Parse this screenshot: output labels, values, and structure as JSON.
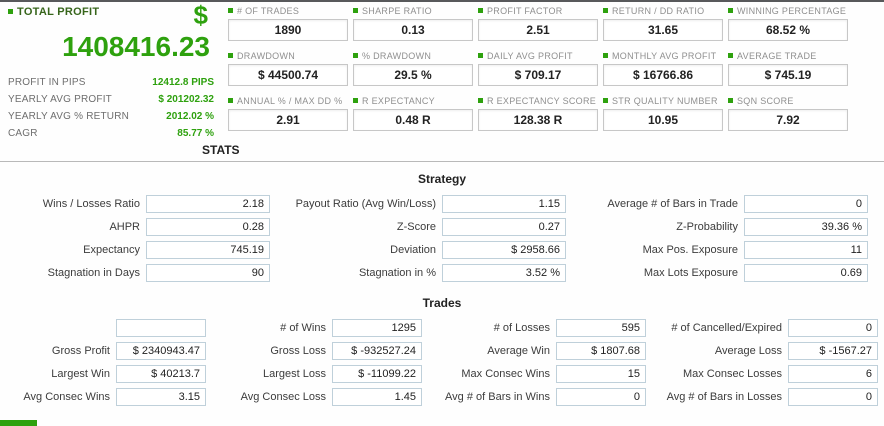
{
  "colors": {
    "green": "#2ea10e",
    "dark_green": "#37651b"
  },
  "summary": {
    "title": "TOTAL PROFIT",
    "currency": "$",
    "total_profit": "1408416.23",
    "stats_label": "STATS",
    "rows": [
      {
        "label": "PROFIT IN PIPS",
        "value": "12412.8 PIPS"
      },
      {
        "label": "YEARLY AVG PROFIT",
        "value": "$ 201202.32"
      },
      {
        "label": "YEARLY AVG % RETURN",
        "value": "2012.02 %"
      },
      {
        "label": "CAGR",
        "value": "85.77 %"
      }
    ]
  },
  "stat_boxes": [
    {
      "label": "# OF TRADES",
      "value": "1890"
    },
    {
      "label": "SHARPE RATIO",
      "value": "0.13"
    },
    {
      "label": "PROFIT FACTOR",
      "value": "2.51"
    },
    {
      "label": "RETURN / DD RATIO",
      "value": "31.65"
    },
    {
      "label": "WINNING PERCENTAGE",
      "value": "68.52 %"
    },
    {
      "label": "DRAWDOWN",
      "value": "$ 44500.74"
    },
    {
      "label": "% DRAWDOWN",
      "value": "29.5 %"
    },
    {
      "label": "DAILY AVG PROFIT",
      "value": "$ 709.17"
    },
    {
      "label": "MONTHLY AVG PROFIT",
      "value": "$ 16766.86"
    },
    {
      "label": "AVERAGE TRADE",
      "value": "$ 745.19"
    },
    {
      "label": "ANNUAL % / MAX DD %",
      "value": "2.91"
    },
    {
      "label": "R EXPECTANCY",
      "value": "0.48 R"
    },
    {
      "label": "R EXPECTANCY SCORE",
      "value": "128.38 R"
    },
    {
      "label": "STR QUALITY NUMBER",
      "value": "10.95"
    },
    {
      "label": "SQN SCORE",
      "value": "7.92"
    }
  ],
  "strategy": {
    "title": "Strategy",
    "cells": [
      {
        "label": "Wins / Losses Ratio",
        "value": "2.18"
      },
      {
        "label": "Payout Ratio (Avg Win/Loss)",
        "value": "1.15"
      },
      {
        "label": "Average # of Bars in Trade",
        "value": "0"
      },
      {
        "label": "AHPR",
        "value": "0.28"
      },
      {
        "label": "Z-Score",
        "value": "0.27"
      },
      {
        "label": "Z-Probability",
        "value": "39.36 %"
      },
      {
        "label": "Expectancy",
        "value": "745.19"
      },
      {
        "label": "Deviation",
        "value": "$ 2958.66"
      },
      {
        "label": "Max Pos. Exposure",
        "value": "11"
      },
      {
        "label": "Stagnation in Days",
        "value": "90"
      },
      {
        "label": "Stagnation in %",
        "value": "3.52 %"
      },
      {
        "label": "Max Lots Exposure",
        "value": "0.69"
      }
    ]
  },
  "trades": {
    "title": "Trades",
    "cells": [
      {
        "label": "",
        "value": ""
      },
      {
        "label": "# of Wins",
        "value": "1295"
      },
      {
        "label": "# of Losses",
        "value": "595"
      },
      {
        "label": "# of Cancelled/Expired",
        "value": "0"
      },
      {
        "label": "Gross Profit",
        "value": "$ 2340943.47"
      },
      {
        "label": "Gross Loss",
        "value": "$ -932527.24"
      },
      {
        "label": "Average Win",
        "value": "$ 1807.68"
      },
      {
        "label": "Average Loss",
        "value": "$ -1567.27"
      },
      {
        "label": "Largest Win",
        "value": "$ 40213.7"
      },
      {
        "label": "Largest Loss",
        "value": "$ -11099.22"
      },
      {
        "label": "Max Consec Wins",
        "value": "15"
      },
      {
        "label": "Max Consec Losses",
        "value": "6"
      },
      {
        "label": "Avg Consec Wins",
        "value": "3.15"
      },
      {
        "label": "Avg Consec Loss",
        "value": "1.45"
      },
      {
        "label": "Avg # of Bars in Wins",
        "value": "0"
      },
      {
        "label": "Avg # of Bars in Losses",
        "value": "0"
      }
    ]
  }
}
